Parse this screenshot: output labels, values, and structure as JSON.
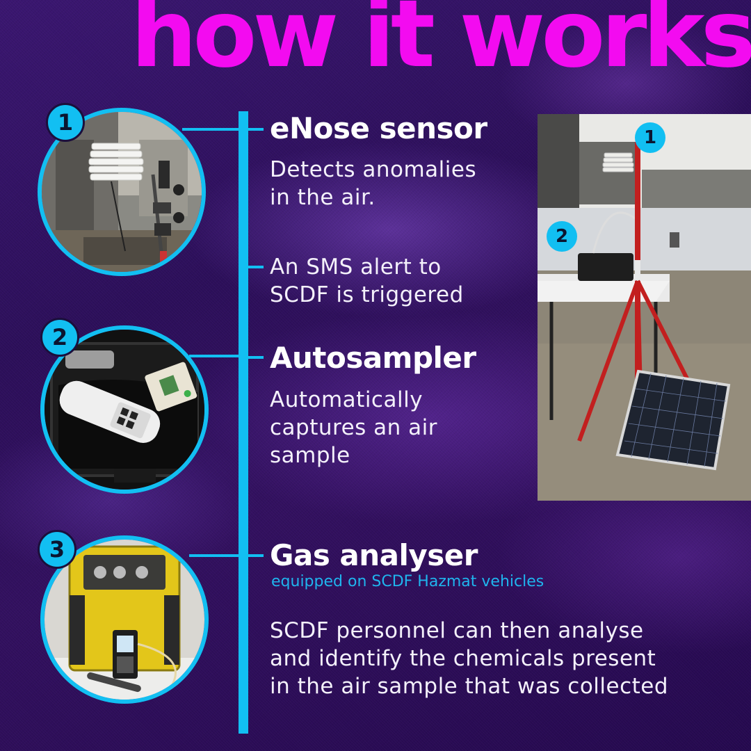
{
  "title": "how it works",
  "colors": {
    "accent": "#12bff2",
    "title": "#f30bf0",
    "background": "#2c0f5a"
  },
  "steps": [
    {
      "number": "1",
      "heading": "eNose sensor",
      "text": [
        "Detects anomalies",
        "in the air."
      ],
      "image": "enose-sensor-photo"
    },
    {
      "number": "",
      "heading": "",
      "text": [
        "An SMS alert to",
        "SCDF is triggered"
      ]
    },
    {
      "number": "2",
      "heading": "Autosampler",
      "text": [
        "Automatically",
        "captures an air",
        "sample"
      ],
      "image": "autosampler-case-photo"
    },
    {
      "number": "3",
      "heading": "Gas analyser",
      "subheading": "equipped on SCDF Hazmat vehicles",
      "text": [
        "SCDF personnel can then analyse",
        "and identify the chemicals present",
        "in the air sample that was collected"
      ],
      "image": "gas-analyser-photo"
    }
  ],
  "setup_photo": {
    "image": "rooftop-setup-photo",
    "labels": [
      "1",
      "2"
    ]
  }
}
